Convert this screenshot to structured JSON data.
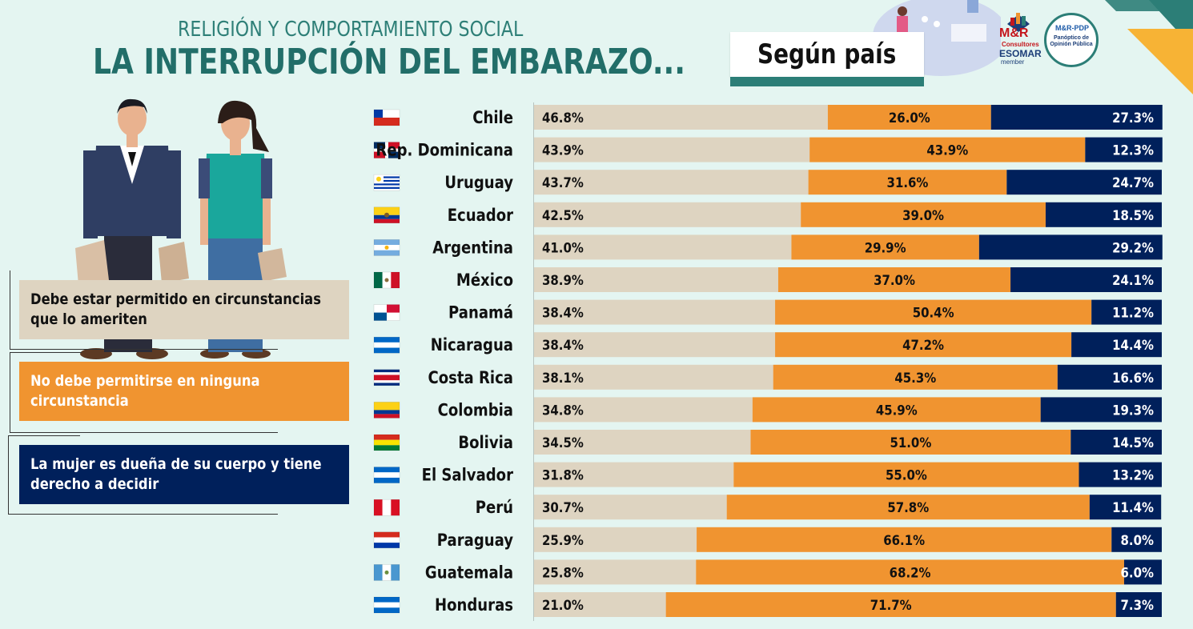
{
  "header": {
    "subtitle": "RELIGIÓN Y COMPORTAMIENTO SOCIAL",
    "title": "LA INTERRUPCIÓN DEL EMBARAZO..."
  },
  "badge": {
    "label": "Según país"
  },
  "logos": {
    "mr_name": "M&R",
    "mr_sub": "Consultores",
    "esomar": "ESOMAR",
    "member": "member",
    "panoptico_acronym": "M&R-PDP",
    "panoptico_name": "Panóptico de Opinión Pública"
  },
  "legend": {
    "beige": "Debe estar permitido en circunstancias que lo ameriten",
    "orange": "No debe permitirse en ninguna circunstancia",
    "navy": "La mujer es dueña de su cuerpo y tiene derecho a decidir"
  },
  "colors": {
    "beige": "#ded4c1",
    "orange": "#f09430",
    "navy": "#00205b",
    "teal": "#226e69"
  },
  "chart_data": {
    "type": "bar",
    "orientation": "horizontal",
    "stacked": true,
    "categories": [
      "Chile",
      "Rep. Dominicana",
      "Uruguay",
      "Ecuador",
      "Argentina",
      "México",
      "Panamá",
      "Nicaragua",
      "Costa Rica",
      "Colombia",
      "Bolivia",
      "El Salvador",
      "Perú",
      "Paraguay",
      "Guatemala",
      "Honduras"
    ],
    "series": [
      {
        "name": "Debe estar permitido en circunstancias que lo ameriten",
        "color": "#ded4c1",
        "values": [
          46.8,
          43.9,
          43.7,
          42.5,
          41.0,
          38.9,
          38.4,
          38.4,
          38.1,
          34.8,
          34.5,
          31.8,
          30.7,
          25.9,
          25.8,
          21.0
        ],
        "labels": [
          "46.8%",
          "43.9%",
          "43.7%",
          "42.5%",
          "41.0%",
          "38.9%",
          "38.4%",
          "38.4%",
          "38.1%",
          "34.8%",
          "34.5%",
          "31.8%",
          "30.7%",
          "25.9%",
          "25.8%",
          "21.0%"
        ]
      },
      {
        "name": "No debe permitirse en ninguna circunstancia",
        "color": "#f09430",
        "values": [
          26.0,
          43.9,
          31.6,
          39.0,
          29.9,
          37.0,
          50.4,
          47.2,
          45.3,
          45.9,
          51.0,
          55.0,
          57.8,
          66.1,
          68.2,
          71.7
        ],
        "labels": [
          "26.0%",
          "43.9%",
          "31.6%",
          "39.0%",
          "29.9%",
          "37.0%",
          "50.4%",
          "47.2%",
          "45.3%",
          "45.9%",
          "51.0%",
          "55.0%",
          "57.8%",
          "66.1%",
          "68.2%",
          "71.7%"
        ]
      },
      {
        "name": "La mujer es dueña de su cuerpo y tiene derecho a decidir",
        "color": "#00205b",
        "values": [
          27.3,
          12.3,
          24.7,
          18.5,
          29.2,
          24.1,
          11.2,
          14.4,
          16.6,
          19.3,
          14.5,
          13.2,
          11.4,
          8.0,
          6.0,
          7.3
        ],
        "labels": [
          "27.3%",
          "12.3%",
          "24.7%",
          "18.5%",
          "29.2%",
          "24.1%",
          "11.2%",
          "14.4%",
          "16.6%",
          "19.3%",
          "14.5%",
          "13.2%",
          "11.4%",
          "8.0%",
          "6.0%",
          "7.3%"
        ]
      }
    ],
    "flags": [
      "chile",
      "dominican-republic",
      "uruguay",
      "ecuador",
      "argentina",
      "mexico",
      "panama",
      "nicaragua",
      "costa-rica",
      "colombia",
      "bolivia",
      "el-salvador",
      "peru",
      "paraguay",
      "guatemala",
      "honduras"
    ],
    "xlim": [
      0,
      100
    ]
  }
}
